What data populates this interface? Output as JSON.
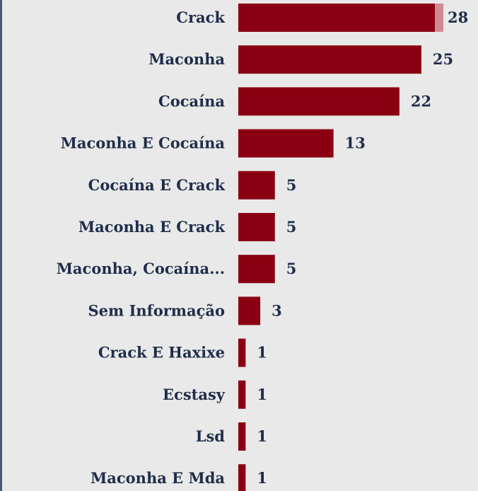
{
  "chart_data": {
    "type": "bar",
    "orientation": "horizontal",
    "categories": [
      "Crack",
      "Maconha",
      "Cocaína",
      "Maconha E Cocaína",
      "Cocaína E Crack",
      "Maconha E Crack",
      "Maconha, Cocaína...",
      "Sem Informação",
      "Crack E Haxixe",
      "Ecstasy",
      "Lsd",
      "Maconha E Mda"
    ],
    "values": [
      28,
      25,
      22,
      13,
      5,
      5,
      5,
      3,
      1,
      1,
      1,
      1
    ],
    "data_labels": [
      "28",
      "25",
      "22",
      "13",
      "5",
      "5",
      "5",
      "3",
      "1",
      "1",
      "1",
      "1"
    ],
    "title": "",
    "xlabel": "",
    "ylabel": "",
    "xlim": [
      0,
      28
    ],
    "grid": false,
    "legend": "none",
    "colors": {
      "bar": "#8a0012",
      "bar_highlight": "#d08a90",
      "text": "#1f2d4a",
      "background": "#e9e9e9",
      "frame": "#4a5a78"
    }
  }
}
